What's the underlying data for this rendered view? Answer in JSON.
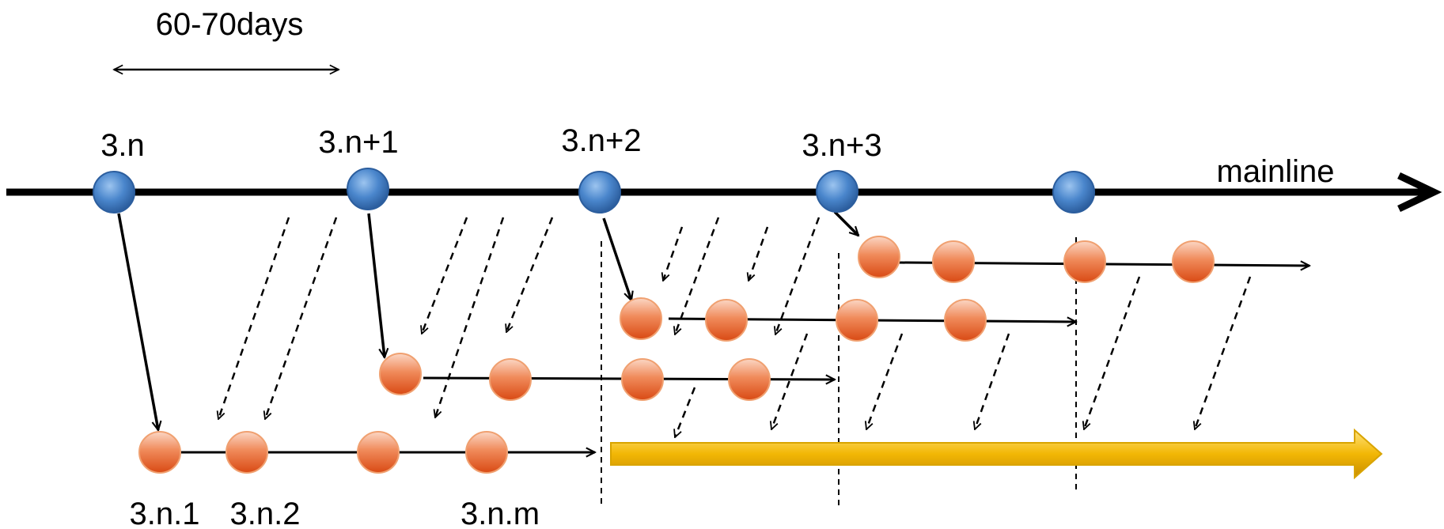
{
  "duration_label": "60-70days",
  "mainline_label": "mainline",
  "releases": [
    "3.n",
    "3.n+1",
    "3.n+2",
    "3.n+3"
  ],
  "branch_labels": [
    "3.n.1",
    "3.n.2",
    "3.n.m"
  ],
  "colors": {
    "mainline": "#000000",
    "release_node": "#4a86cc",
    "branch_node": "#e8642c",
    "highlight_arrow": "#f2b705"
  }
}
